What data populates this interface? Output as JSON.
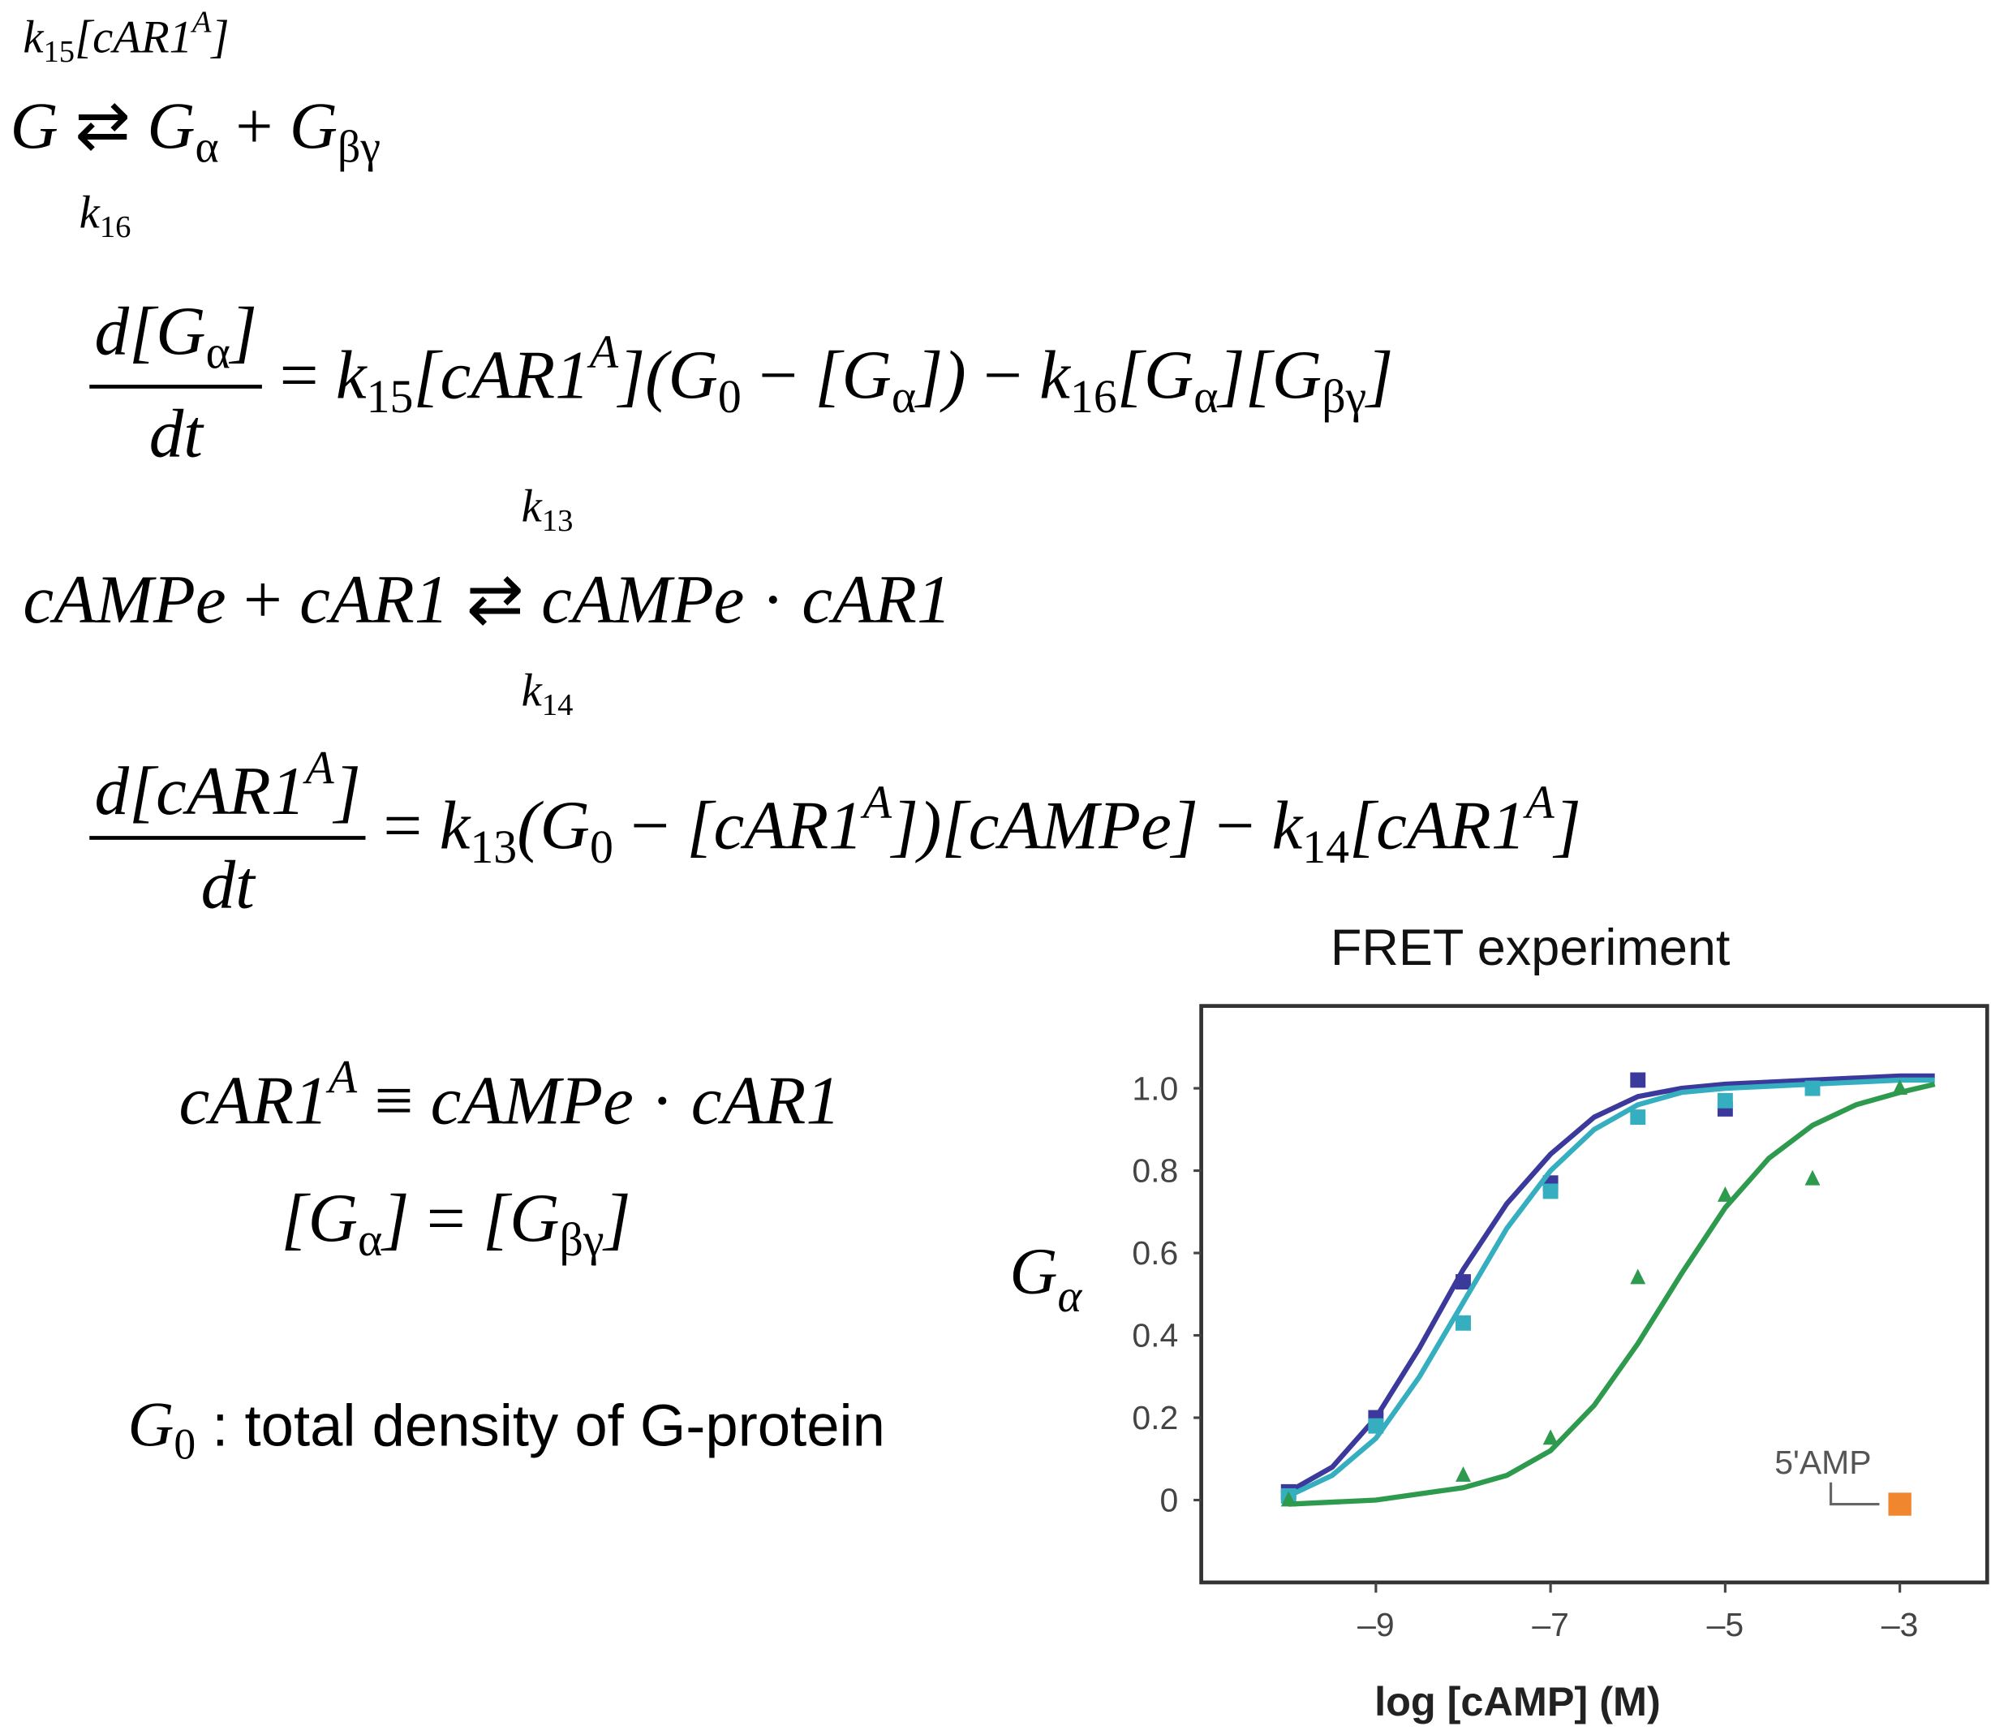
{
  "equations": [
    {
      "parts": [
        "k",
        {
          "sub": "15"
        },
        "[cAR1",
        {
          "sup": "A"
        },
        "]"
      ]
    },
    {
      "parts": [
        "G ",
        {
          "op": "⇄"
        },
        " G",
        {
          "sub": "α"
        },
        {
          "op": " + "
        },
        "G",
        {
          "sub": "βγ"
        }
      ]
    },
    {
      "parts": [
        "k",
        {
          "sub": "16"
        }
      ]
    },
    {
      "parts": [
        {
          "frac": [
            [
              "d[G",
              {
                "sub": "α"
              },
              "]"
            ],
            [
              "dt"
            ]
          ]
        },
        {
          "op": " = "
        },
        "k",
        {
          "sub": "15"
        },
        "[cAR1",
        {
          "sup": "A"
        },
        "](G",
        {
          "sub": "0"
        },
        {
          "op": " − "
        },
        "[G",
        {
          "sub": "α"
        },
        "]) ",
        {
          "op": "− "
        },
        "k",
        {
          "sub": "16"
        },
        "[G",
        {
          "sub": "α"
        },
        "][G",
        {
          "sub": "βγ"
        },
        "]"
      ]
    },
    {
      "parts": [
        "k",
        {
          "sub": "13"
        }
      ]
    },
    {
      "parts": [
        "cAMPe ",
        {
          "op": "+"
        },
        " cAR1 ",
        {
          "op": "⇄"
        },
        " cAMPe ",
        {
          "op": "·"
        },
        " cAR1"
      ]
    },
    {
      "parts": [
        "k",
        {
          "sub": "14"
        }
      ]
    },
    {
      "parts": [
        {
          "frac": [
            [
              "d[cAR1",
              {
                "sup": "A"
              },
              "]"
            ],
            [
              "dt"
            ]
          ]
        },
        {
          "op": " = "
        },
        "k",
        {
          "sub": "13"
        },
        "(G",
        {
          "sub": "0"
        },
        {
          "op": " − "
        },
        "[cAR1",
        {
          "sup": "A"
        },
        "])[cAMPe] ",
        {
          "op": "− "
        },
        "k",
        {
          "sub": "14"
        },
        "[cAR1",
        {
          "sup": "A"
        },
        "]"
      ]
    },
    {
      "parts": [
        "cAR1",
        {
          "sup": "A"
        },
        {
          "op": " ≡ "
        },
        "cAMPe ",
        {
          "op": "·"
        },
        " cAR1"
      ]
    },
    {
      "parts": [
        "[G",
        {
          "sub": "α"
        },
        "]",
        {
          "op": " = "
        },
        "[G",
        {
          "sub": "βγ"
        },
        "]"
      ]
    },
    {
      "parts": [
        "G",
        {
          "sub": "0"
        },
        {
          "text": " : total density of G-protein"
        }
      ]
    }
  ],
  "chart_data": {
    "type": "scatter",
    "title": "FRET experiment",
    "x_label": "log [cAMP] (M)",
    "y_label": [
      "G",
      {
        "sub": "α"
      }
    ],
    "xlim": [
      -11,
      -2
    ],
    "ylim": [
      -0.2,
      1.2
    ],
    "xticks": [
      {
        "value": -9,
        "label": "–9"
      },
      {
        "value": -7,
        "label": "–7"
      },
      {
        "value": -5,
        "label": "–5"
      },
      {
        "value": -3,
        "label": "–3"
      }
    ],
    "yticks": [
      0,
      0.2,
      0.4,
      0.6,
      0.8,
      {
        "value": 1,
        "label": "1.0"
      }
    ],
    "series": [
      {
        "color": "#3b3a9c",
        "marker": "square",
        "x": [
          -10,
          -9,
          -8,
          -7,
          -6,
          -5
        ],
        "values": [
          0.02,
          0.2,
          0.53,
          0.77,
          1.02,
          0.95
        ],
        "fit": {
          "x": [
            -10,
            -9.5,
            -9,
            -8.5,
            -8,
            -7.5,
            -7,
            -6.5,
            -6,
            -5.5,
            -5,
            -4,
            -3,
            -2.6
          ],
          "values": [
            0.02,
            0.08,
            0.2,
            0.37,
            0.56,
            0.72,
            0.84,
            0.93,
            0.98,
            1.0,
            1.01,
            1.02,
            1.03,
            1.03
          ]
        }
      },
      {
        "color": "#35aec0",
        "marker": "square",
        "x": [
          -10,
          -9,
          -8,
          -7,
          -6,
          -5,
          -4
        ],
        "values": [
          0.01,
          0.18,
          0.43,
          0.75,
          0.93,
          0.97,
          1.0
        ],
        "fit": {
          "x": [
            -10,
            -9.5,
            -9,
            -8.5,
            -8,
            -7.5,
            -7,
            -6.5,
            -6,
            -5.5,
            -5,
            -4,
            -3,
            -2.6
          ],
          "values": [
            0.01,
            0.06,
            0.15,
            0.3,
            0.48,
            0.66,
            0.8,
            0.9,
            0.96,
            0.99,
            1.0,
            1.01,
            1.02,
            1.02
          ]
        }
      },
      {
        "color": "#2e9a4e",
        "marker": "triangle",
        "x": [
          -10,
          -8,
          -7,
          -6,
          -5,
          -4,
          -3
        ],
        "values": [
          0.0,
          0.06,
          0.15,
          0.54,
          0.74,
          0.78,
          1.0
        ],
        "fit": {
          "x": [
            -10,
            -9,
            -8,
            -7.5,
            -7,
            -6.5,
            -6,
            -5.5,
            -5,
            -4.5,
            -4,
            -3.5,
            -3,
            -2.6
          ],
          "values": [
            -0.01,
            0.0,
            0.03,
            0.06,
            0.12,
            0.23,
            0.38,
            0.55,
            0.71,
            0.83,
            0.91,
            0.96,
            0.99,
            1.01
          ]
        }
      }
    ],
    "annotation": {
      "label": "5'AMP",
      "x": -3,
      "y": -0.01,
      "color": "#f0862e"
    }
  }
}
